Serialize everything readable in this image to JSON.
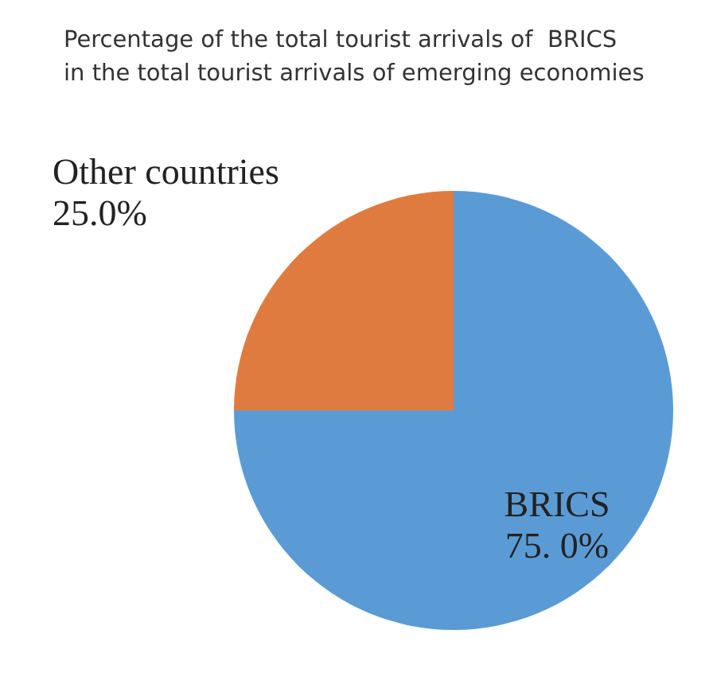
{
  "chart_data": {
    "type": "pie",
    "title": "Percentage of the total tourist arrivals of  BRICS\nin the total tourist arrivals of emerging economies",
    "categories": [
      "BRICS",
      "Other countries"
    ],
    "values": [
      75,
      25
    ],
    "colors": [
      "#5b9bd5",
      "#e07b3f"
    ],
    "value_labels": [
      "75. 0%",
      "25.0%"
    ],
    "legend": false
  }
}
